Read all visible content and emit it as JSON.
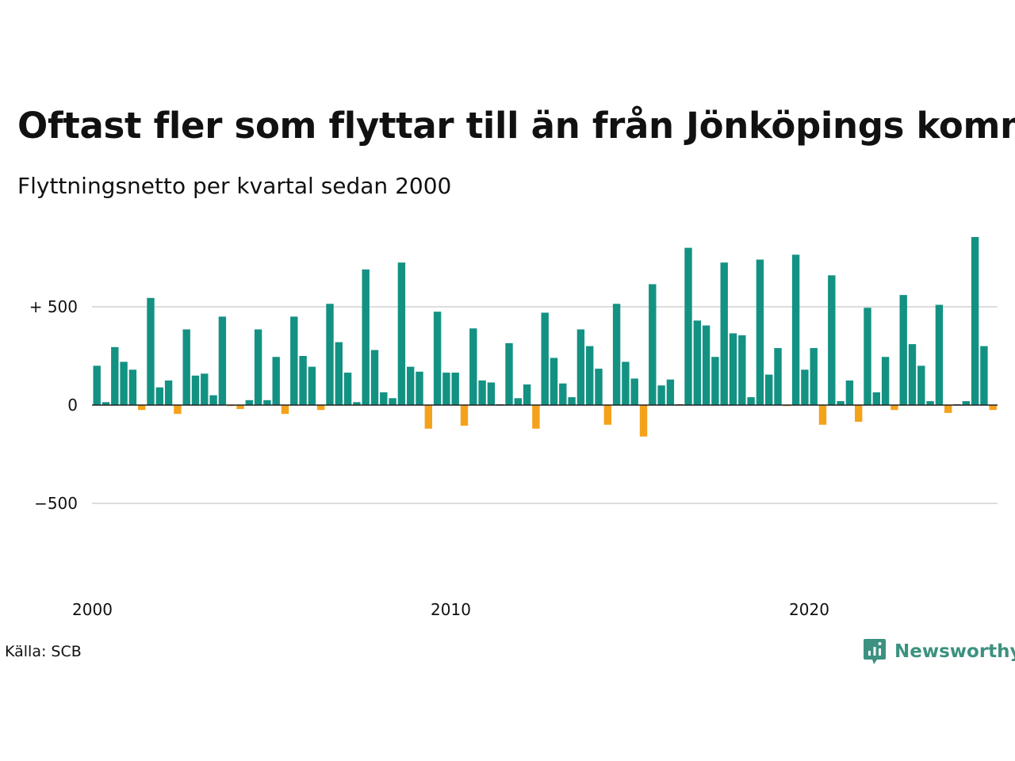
{
  "header": {
    "title": "Oftast fler som flyttar till än från Jönköpings kommun",
    "subtitle": "Flyttningsnetto per kvartal sedan 2000"
  },
  "footer": {
    "source": "Källa: SCB",
    "brand": "Newsworthy"
  },
  "colors": {
    "positive": "#139283",
    "negative": "#f5a21b",
    "grid": "#dddddd",
    "brand": "#3c9181"
  },
  "chart_data": {
    "type": "bar",
    "title": "Oftast fler som flyttar till än från Jönköpings kommun",
    "subtitle": "Flyttningsnetto per kvartal sedan 2000",
    "xlabel": "",
    "ylabel": "",
    "ylim": [
      -800,
      900
    ],
    "grid": true,
    "y_ticks": [
      {
        "value": 500,
        "label": "+ 500"
      },
      {
        "value": 0,
        "label": "0"
      },
      {
        "value": -500,
        "label": "−500"
      }
    ],
    "x_ticks": [
      {
        "value": 2000,
        "label": "2000"
      },
      {
        "value": 2010,
        "label": "2010"
      },
      {
        "value": 2020,
        "label": "2020"
      }
    ],
    "x_start": 2000,
    "periods_per_year": 4,
    "values": [
      200,
      15,
      295,
      220,
      180,
      -25,
      545,
      90,
      125,
      -45,
      385,
      150,
      160,
      50,
      450,
      -5,
      -20,
      25,
      385,
      25,
      245,
      -45,
      450,
      250,
      195,
      -25,
      515,
      320,
      165,
      15,
      690,
      280,
      65,
      35,
      725,
      195,
      170,
      -120,
      475,
      165,
      165,
      -105,
      390,
      125,
      115,
      0,
      315,
      35,
      105,
      -120,
      470,
      240,
      110,
      40,
      385,
      300,
      185,
      -100,
      515,
      220,
      135,
      -160,
      615,
      100,
      130,
      0,
      800,
      430,
      405,
      245,
      725,
      365,
      355,
      40,
      740,
      155,
      290,
      -5,
      765,
      180,
      290,
      -100,
      660,
      20,
      125,
      -85,
      495,
      65,
      245,
      -25,
      560,
      310,
      200,
      20,
      510,
      -40,
      0,
      20,
      855,
      300,
      -25
    ]
  }
}
